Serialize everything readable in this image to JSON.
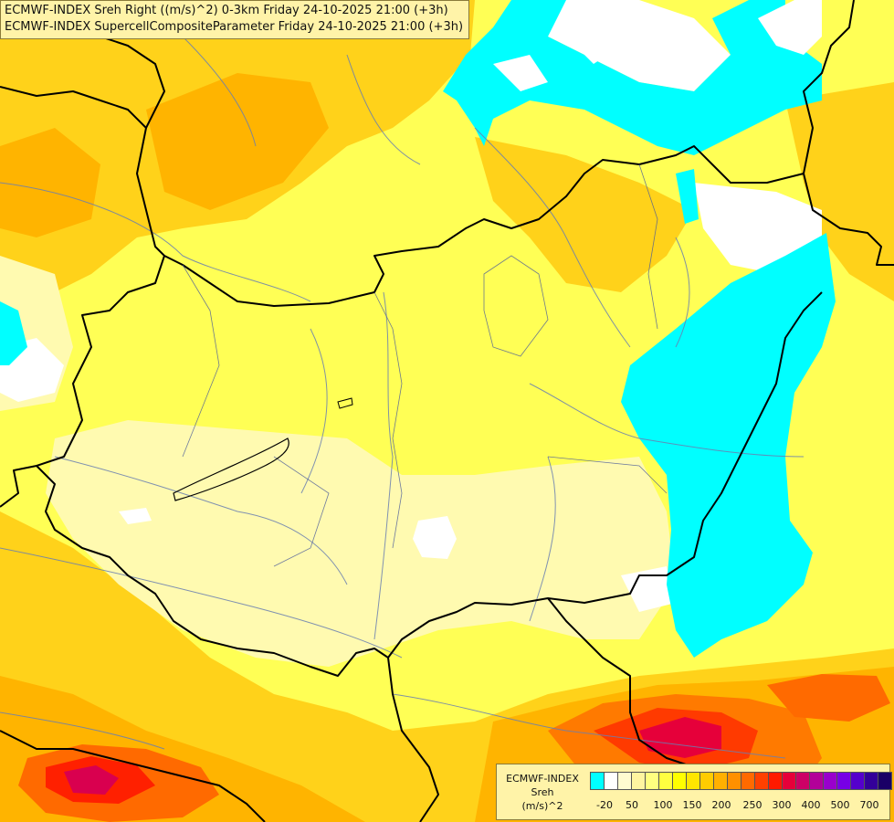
{
  "title_lines": [
    "ECMWF-INDEX Sreh Right ((m/s)^2) 0-3km Friday 24-10-2025 21:00 (+3h)",
    "ECMWF-INDEX SupercellCompositeParameter Friday 24-10-2025 21:00 (+3h)"
  ],
  "legend": {
    "title_lines": [
      "ECMWF-INDEX",
      "Sreh",
      "(m/s)^2"
    ],
    "colors": [
      "#00ffff",
      "#ffffff",
      "#fffbd0",
      "#fff5a0",
      "#ffff80",
      "#ffff40",
      "#ffff00",
      "#ffe600",
      "#ffcc00",
      "#ffb000",
      "#ff9000",
      "#ff6a00",
      "#ff4000",
      "#ff1a00",
      "#e6003a",
      "#cc0066",
      "#b30099",
      "#9900cc",
      "#7700e6",
      "#5500cc",
      "#330099",
      "#1a0066"
    ],
    "ticks": [
      "-20",
      "50",
      "100",
      "150",
      "200",
      "250",
      "300",
      "400",
      "500",
      "700"
    ]
  }
}
